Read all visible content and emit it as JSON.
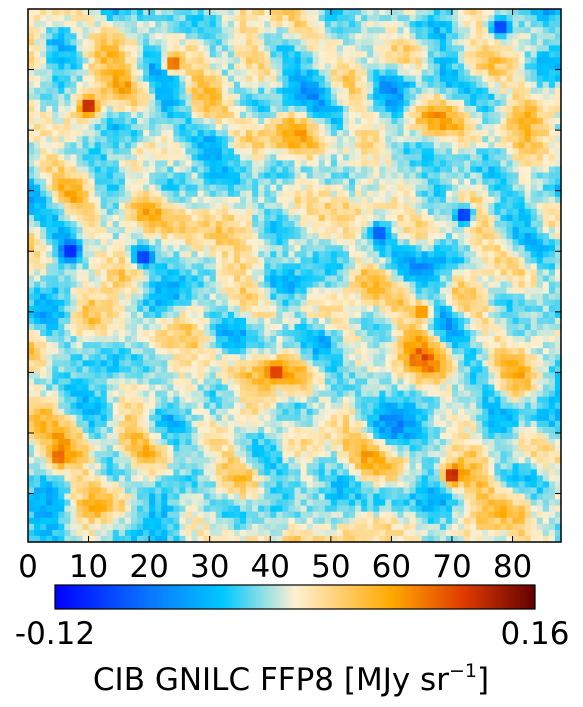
{
  "chart_data": {
    "type": "heatmap",
    "title": "",
    "x_axis": {
      "ticks": [
        "0",
        "10",
        "20",
        "30",
        "40",
        "50",
        "60",
        "70",
        "80"
      ],
      "range": [
        0,
        88
      ]
    },
    "y_axis": {
      "tick_labels_shown": false,
      "range": [
        0,
        88
      ]
    },
    "grid": false,
    "colormap": {
      "name": "planck-diverging",
      "stops": [
        [
          "0.00",
          "#0000ff"
        ],
        [
          "0.20",
          "#0a78ff"
        ],
        [
          "0.35",
          "#00c8ff"
        ],
        [
          "0.50",
          "#fff0d2"
        ],
        [
          "0.70",
          "#ffaa00"
        ],
        [
          "0.85",
          "#e03c00"
        ],
        [
          "1.00",
          "#640000"
        ]
      ]
    },
    "colorbar": {
      "min_label": "-0.12",
      "max_label": "0.16",
      "vmin": -0.12,
      "vmax": 0.16,
      "label_prefix": "CIB GNILC FFP8 [MJy sr",
      "label_exp": "−1",
      "label_suffix": "]",
      "orientation": "horizontal",
      "placement": "bottom"
    },
    "map_grid_cells": 88,
    "field_seed": 7,
    "hotspots": [
      {
        "x": 10,
        "y": 16,
        "value": 0.15
      },
      {
        "x": 70,
        "y": 77,
        "value": 0.15
      },
      {
        "x": 41,
        "y": 60,
        "value": 0.13
      },
      {
        "x": 24,
        "y": 9,
        "value": 0.12
      },
      {
        "x": 5,
        "y": 74,
        "value": 0.11
      },
      {
        "x": 65,
        "y": 50,
        "value": 0.1
      }
    ],
    "coldspots": [
      {
        "x": 72,
        "y": 34,
        "value": -0.12
      },
      {
        "x": 7,
        "y": 40,
        "value": -0.12
      },
      {
        "x": 19,
        "y": 41,
        "value": -0.11
      },
      {
        "x": 78,
        "y": 3,
        "value": -0.11
      },
      {
        "x": 58,
        "y": 37,
        "value": -0.09
      }
    ]
  }
}
